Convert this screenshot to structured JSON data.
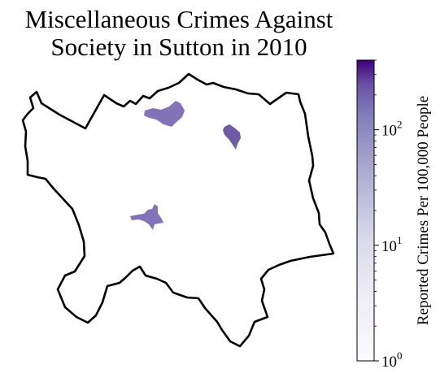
{
  "map": {
    "title_lines": [
      "Miscellaneous Crimes Against",
      "Society in Sutton in 2010"
    ],
    "borough": "Sutton",
    "year": "2010",
    "colormap": "purples",
    "background": "#ffffff",
    "outline_color": "#000000",
    "regions": [
      {
        "name": "north-central-patch",
        "value": 90,
        "color": "#8273b9"
      },
      {
        "name": "north-east-patch",
        "value": 150,
        "color": "#6f5aa8"
      },
      {
        "name": "south-west-patch",
        "value": 90,
        "color": "#8273b9"
      }
    ]
  },
  "colorbar": {
    "label": "Reported Crimes Per 100,000 People",
    "scale": "log",
    "range": [
      1,
      400
    ],
    "ticks": [
      {
        "base": "10",
        "exp": "0",
        "value": 1
      },
      {
        "base": "10",
        "exp": "1",
        "value": 10
      },
      {
        "base": "10",
        "exp": "2",
        "value": 100
      }
    ],
    "color_low": "#fcfbfd",
    "color_high": "#3f007d"
  }
}
